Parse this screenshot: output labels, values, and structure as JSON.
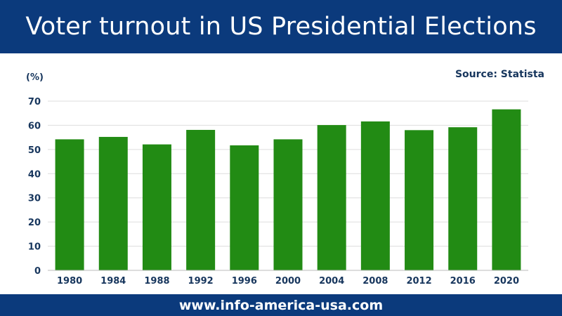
{
  "header": {
    "title": "Voter turnout in US Presidential Elections"
  },
  "source": {
    "label": "Source: Statista"
  },
  "footer": {
    "url": "www.info-america-usa.com"
  },
  "colors": {
    "bar": "#228b14",
    "banner": "#0b3a7c",
    "text": "#17365d",
    "grid": "#dddddd"
  },
  "chart_data": {
    "type": "bar",
    "title": "Voter turnout in US Presidential Elections",
    "xlabel": "",
    "ylabel": "(%)",
    "categories": [
      "1980",
      "1984",
      "1988",
      "1992",
      "1996",
      "2000",
      "2004",
      "2008",
      "2012",
      "2016",
      "2020"
    ],
    "values": [
      54.2,
      55.2,
      52.1,
      58.1,
      51.7,
      54.2,
      60.1,
      61.6,
      58.0,
      59.2,
      66.6
    ],
    "yticks": [
      0,
      10,
      20,
      30,
      40,
      50,
      60,
      70
    ],
    "ylim": [
      0,
      70
    ],
    "grid": true,
    "legend": "none"
  }
}
